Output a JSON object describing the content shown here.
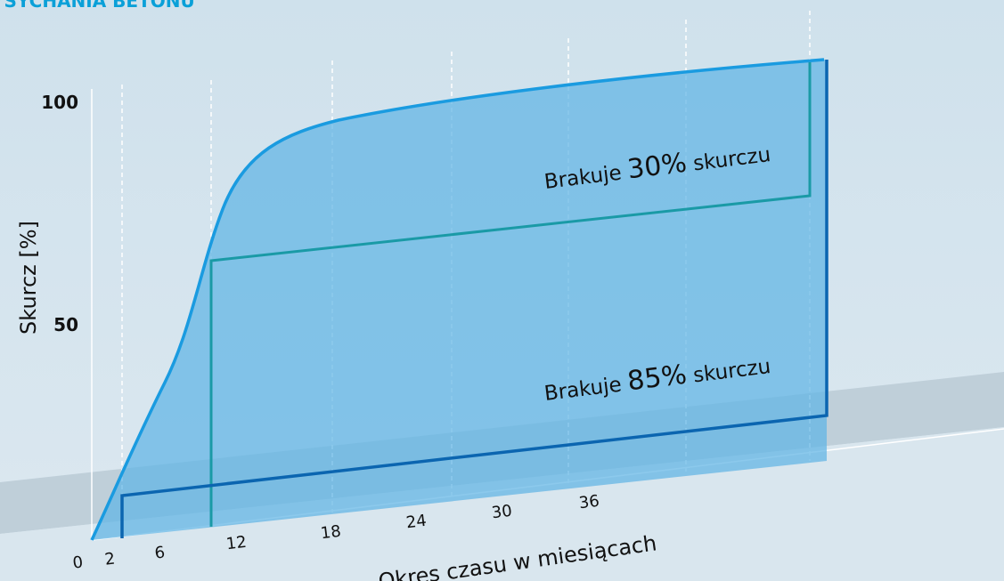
{
  "header": {
    "title": "YSYCHANIA BETONU"
  },
  "y_axis": {
    "label": "Skurcz  [%]",
    "ticks": [
      "100",
      "50"
    ]
  },
  "x_axis": {
    "label": "Okres czasu w miesiącach",
    "ticks": [
      "0",
      "2",
      "6",
      "12",
      "18",
      "24",
      "30",
      "36"
    ]
  },
  "annotations": [
    {
      "prefix": "Brakuje",
      "value": "30%",
      "suffix": "skurczu"
    },
    {
      "prefix": "Brakuje",
      "value": "85%",
      "suffix": "skurczu"
    }
  ]
}
